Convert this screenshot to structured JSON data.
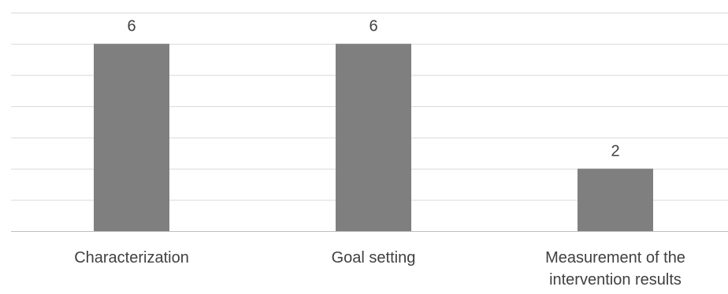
{
  "chart_data": {
    "type": "bar",
    "categories": [
      "Characterization",
      "Goal setting",
      "Measurement of the intervention results"
    ],
    "category_label_lines": [
      [
        "Characterization"
      ],
      [
        "Goal setting"
      ],
      [
        "Measurement of the",
        "intervention results"
      ]
    ],
    "values": [
      6,
      6,
      2
    ],
    "data_labels": [
      "6",
      "6",
      "2"
    ],
    "ylim": [
      0,
      7
    ],
    "grid": true,
    "bar_color": "#7f7f7f",
    "title": "",
    "xlabel": "",
    "ylabel": ""
  }
}
